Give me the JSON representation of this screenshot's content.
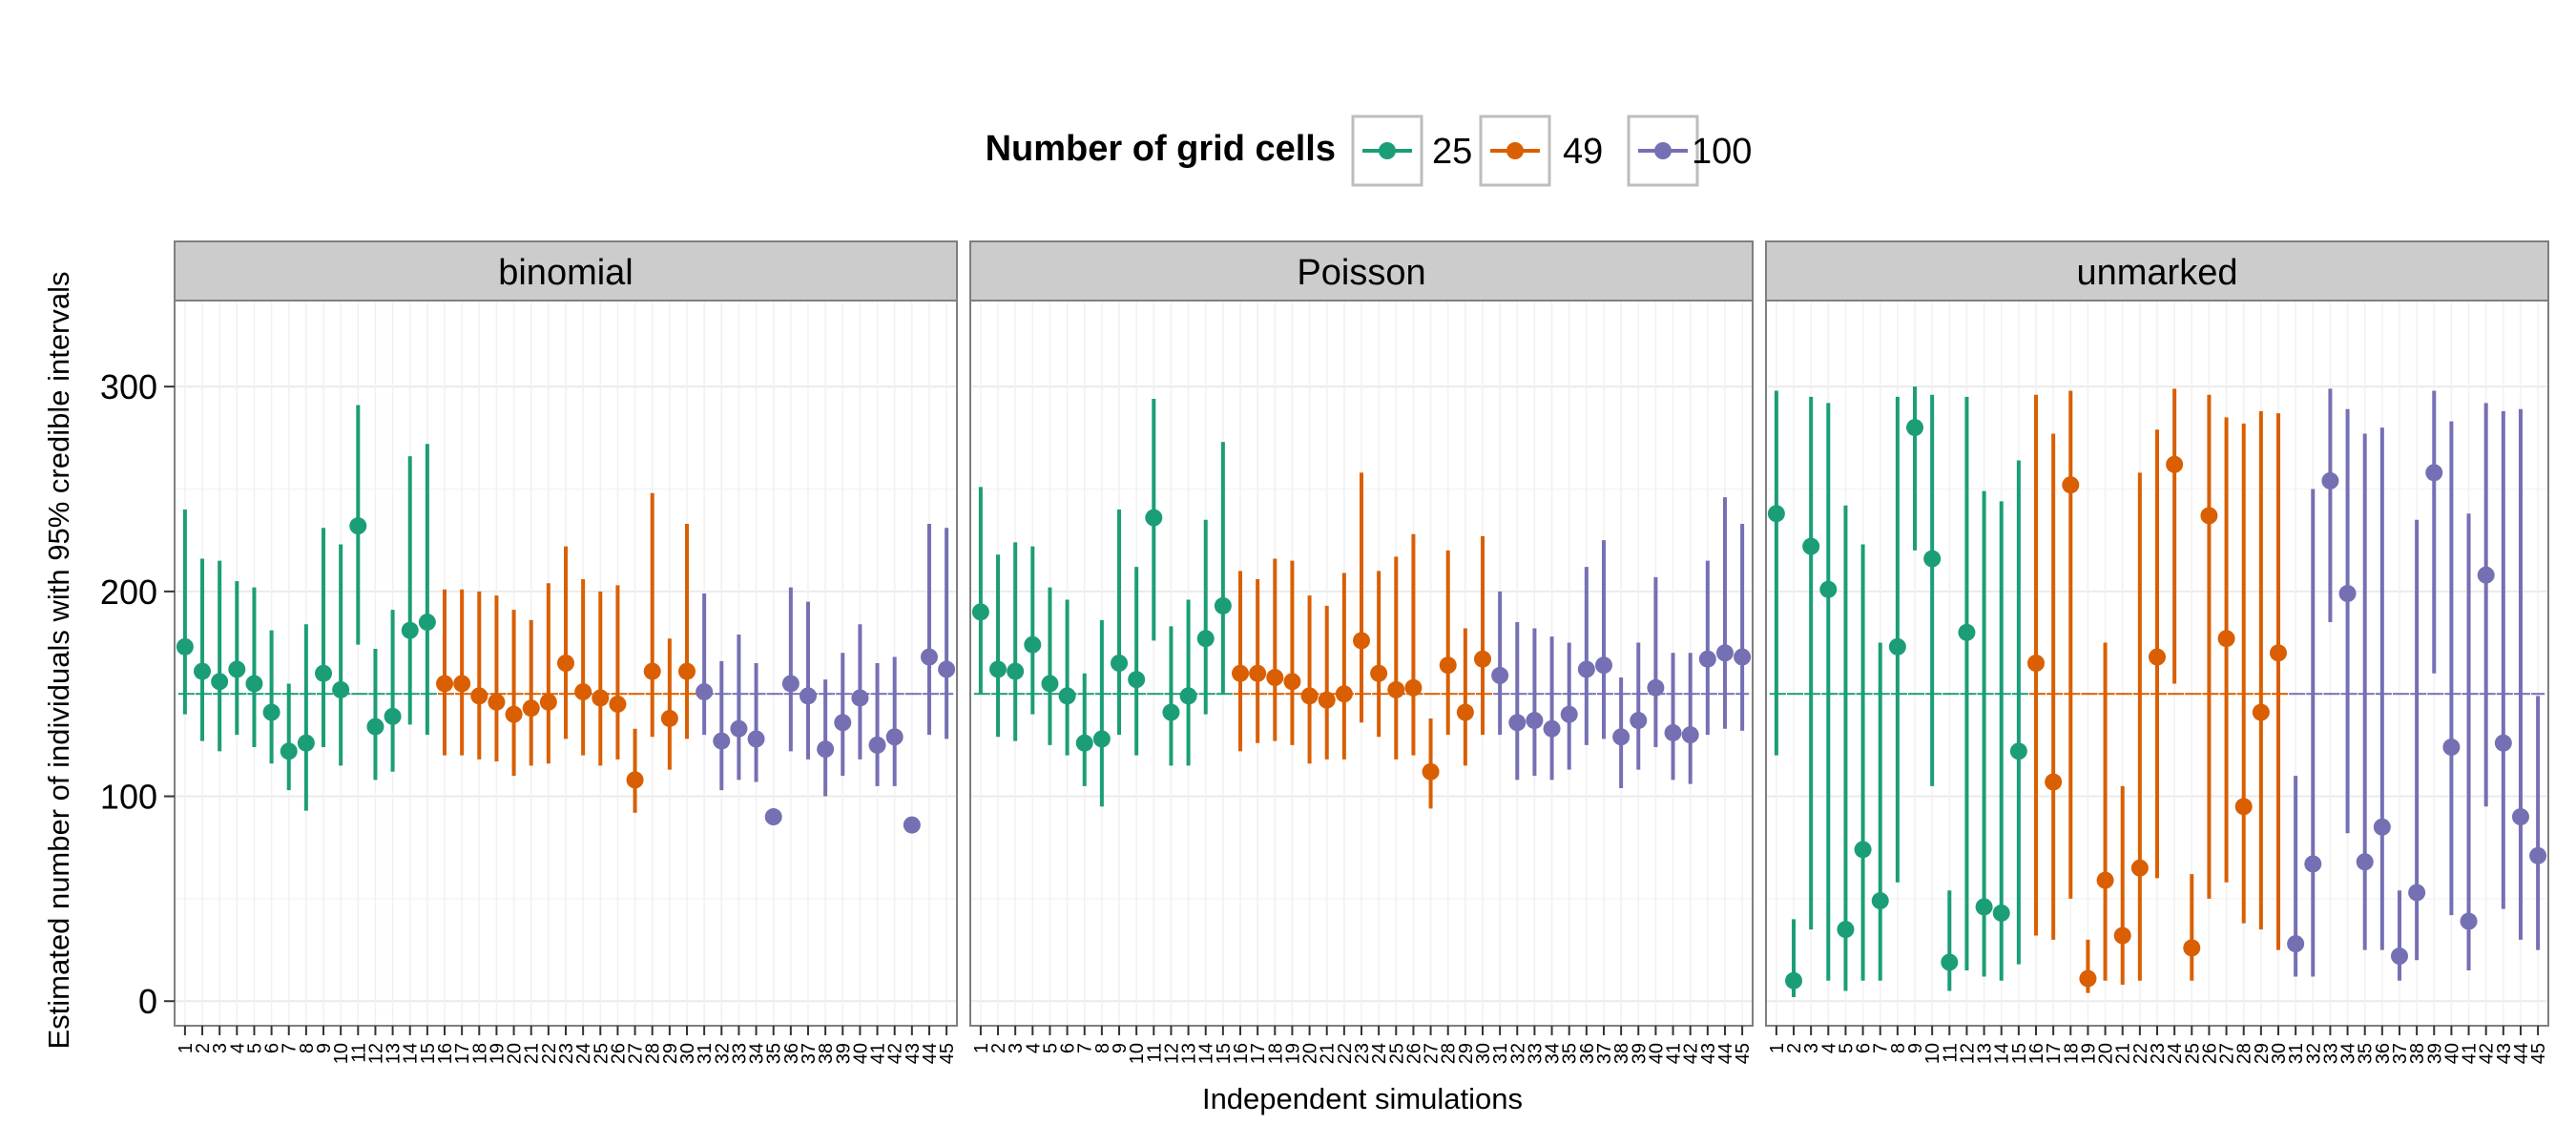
{
  "chart_data": {
    "type": "errorbar",
    "legend": {
      "title": "Number of grid cells",
      "placement": "top",
      "entries": [
        {
          "key": "25",
          "label": "25",
          "color": "#1b9e77"
        },
        {
          "key": "49",
          "label": "49",
          "color": "#d95f02"
        },
        {
          "key": "100",
          "label": "100",
          "color": "#7570b3"
        }
      ]
    },
    "xlabel": "Independent simulations",
    "ylabel": "Estimated number of individuals with 95% credible intervals",
    "ylim": [
      -12,
      342
    ],
    "yticks": [
      0,
      100,
      200,
      300
    ],
    "reference_value": 150,
    "grid": true,
    "x_order": [
      1,
      2,
      3,
      4,
      5,
      6,
      7,
      8,
      9,
      10,
      11,
      12,
      13,
      14,
      15,
      16,
      17,
      18,
      19,
      20,
      21,
      22,
      23,
      24,
      25,
      26,
      27,
      28,
      29,
      30,
      31,
      32,
      33,
      34,
      35,
      36,
      37,
      38,
      39,
      40,
      41,
      42,
      43,
      44,
      45
    ],
    "x_tick_labels": [
      "1",
      "2",
      "3",
      "4",
      "5",
      "6",
      "7",
      "8",
      "9",
      "10",
      "11",
      "12",
      "13",
      "14",
      "15",
      "16",
      "17",
      "18",
      "19",
      "20",
      "21",
      "22",
      "23",
      "24",
      "25",
      "26",
      "27",
      "28",
      "29",
      "30",
      "31",
      "32",
      "33",
      "34",
      "35",
      "36",
      "37",
      "38",
      "39",
      "40",
      "41",
      "42",
      "43",
      "44",
      "45"
    ],
    "group_of_sim": [
      "25",
      "25",
      "25",
      "25",
      "25",
      "25",
      "25",
      "25",
      "25",
      "25",
      "25",
      "25",
      "25",
      "25",
      "25",
      "49",
      "49",
      "49",
      "49",
      "49",
      "49",
      "49",
      "49",
      "49",
      "49",
      "49",
      "49",
      "49",
      "49",
      "49",
      "100",
      "100",
      "100",
      "100",
      "100",
      "100",
      "100",
      "100",
      "100",
      "100",
      "100",
      "100",
      "100",
      "100",
      "100"
    ],
    "panels": [
      {
        "name": "binomial",
        "estimate": [
          173,
          161,
          156,
          162,
          155,
          141,
          122,
          126,
          160,
          152,
          232,
          134,
          139,
          181,
          185,
          155,
          155,
          149,
          146,
          140,
          143,
          146,
          165,
          151,
          148,
          145,
          108,
          161,
          138,
          161,
          151,
          127,
          133,
          128,
          90,
          155,
          149,
          123,
          136,
          148,
          125,
          129,
          86,
          168,
          162
        ],
        "lower": [
          140,
          127,
          122,
          130,
          124,
          116,
          103,
          93,
          124,
          115,
          174,
          108,
          112,
          135,
          130,
          120,
          120,
          118,
          117,
          110,
          115,
          116,
          128,
          120,
          115,
          118,
          92,
          129,
          113,
          128,
          130,
          103,
          108,
          107,
          90,
          122,
          118,
          100,
          110,
          118,
          105,
          105,
          86,
          130,
          128
        ],
        "upper": [
          240,
          216,
          215,
          205,
          202,
          181,
          155,
          184,
          231,
          223,
          291,
          172,
          191,
          266,
          272,
          201,
          201,
          200,
          198,
          191,
          186,
          204,
          222,
          206,
          200,
          203,
          133,
          248,
          177,
          233,
          199,
          166,
          179,
          165,
          90,
          202,
          195,
          157,
          170,
          184,
          165,
          168,
          86,
          233,
          231
        ]
      },
      {
        "name": "Poisson",
        "estimate": [
          190,
          162,
          161,
          174,
          155,
          149,
          126,
          128,
          165,
          157,
          236,
          141,
          149,
          177,
          193,
          160,
          160,
          158,
          156,
          149,
          147,
          150,
          176,
          160,
          152,
          153,
          112,
          164,
          141,
          167,
          159,
          136,
          137,
          133,
          140,
          162,
          164,
          129,
          137,
          153,
          131,
          130,
          167,
          170,
          168
        ],
        "lower": [
          150,
          129,
          127,
          140,
          125,
          120,
          105,
          95,
          130,
          120,
          176,
          115,
          115,
          140,
          150,
          122,
          126,
          127,
          125,
          116,
          118,
          118,
          136,
          129,
          118,
          120,
          94,
          130,
          115,
          130,
          130,
          108,
          110,
          108,
          113,
          125,
          128,
          104,
          113,
          124,
          108,
          106,
          130,
          133,
          132
        ],
        "upper": [
          251,
          218,
          224,
          222,
          202,
          196,
          160,
          186,
          240,
          212,
          294,
          183,
          196,
          235,
          273,
          210,
          206,
          216,
          215,
          198,
          193,
          209,
          258,
          210,
          217,
          228,
          138,
          220,
          182,
          227,
          200,
          185,
          182,
          178,
          175,
          212,
          225,
          158,
          175,
          207,
          170,
          170,
          215,
          246,
          233
        ]
      },
      {
        "name": "unmarked",
        "estimate": [
          238,
          10,
          222,
          201,
          35,
          74,
          49,
          173,
          280,
          216,
          19,
          180,
          46,
          43,
          122,
          165,
          107,
          252,
          11,
          59,
          32,
          65,
          168,
          262,
          26,
          237,
          177,
          95,
          141,
          170,
          28,
          67,
          254,
          199,
          68,
          85,
          22,
          53,
          258,
          124,
          39,
          208,
          126,
          90,
          71
        ],
        "lower": [
          120,
          2,
          35,
          10,
          5,
          10,
          10,
          58,
          220,
          105,
          5,
          15,
          12,
          10,
          18,
          32,
          30,
          50,
          4,
          10,
          8,
          10,
          60,
          155,
          10,
          50,
          58,
          38,
          35,
          25,
          12,
          12,
          185,
          82,
          25,
          25,
          10,
          20,
          160,
          42,
          15,
          95,
          45,
          30,
          25
        ],
        "upper": [
          298,
          40,
          295,
          292,
          242,
          223,
          175,
          295,
          300,
          296,
          54,
          295,
          249,
          244,
          264,
          296,
          277,
          298,
          30,
          175,
          105,
          258,
          279,
          299,
          62,
          296,
          285,
          282,
          288,
          287,
          110,
          250,
          299,
          289,
          277,
          280,
          54,
          235,
          298,
          283,
          238,
          292,
          288,
          289,
          149
        ]
      }
    ]
  }
}
